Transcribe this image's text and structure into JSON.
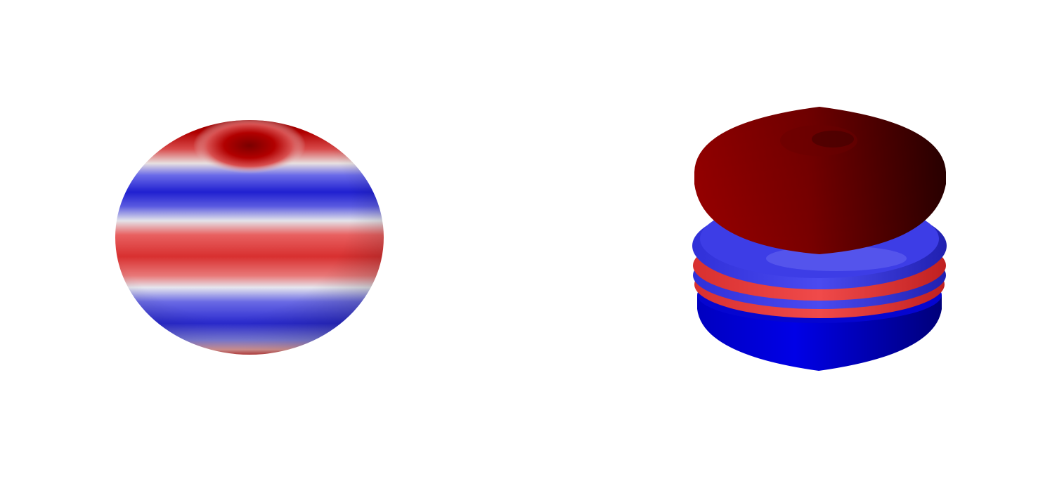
{
  "figures": [
    {
      "name": "spherical-harmonic-sphere",
      "colormap": "blue-white-red",
      "colors": {
        "red": "#d62626",
        "dark_red": "#a80000",
        "white": "#e8e8e8",
        "blue": "#2a2ad8",
        "dark_blue": "#1010b0"
      }
    },
    {
      "name": "radial-isosurface-stack",
      "colormap": "blue-red",
      "colors": {
        "top_cap": "#8a0000",
        "top_cap_shadow": "#3a0000",
        "ring_red": "#e03a3a",
        "ring_blue": "#4a4aee",
        "bottom_blue": "#0a0ae0",
        "bottom_blue_shadow": "#00006a"
      }
    }
  ]
}
